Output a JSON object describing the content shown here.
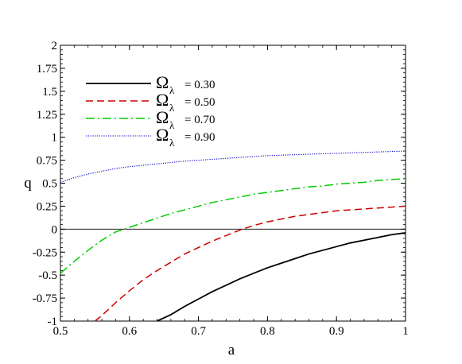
{
  "chart_data": {
    "type": "line",
    "xlabel": "a",
    "ylabel": "q",
    "xlim": [
      0.5,
      1.0
    ],
    "ylim": [
      -1.0,
      2.0
    ],
    "x_ticks": [
      "0.5",
      "0.6",
      "0.7",
      "0.8",
      "0.9",
      "1"
    ],
    "y_ticks": [
      "-1",
      "-0.75",
      "-0.5",
      "-0.25",
      "0",
      "0.25",
      "0.5",
      "0.75",
      "1",
      "1.25",
      "1.5",
      "1.75",
      "2"
    ],
    "x_tick_values": [
      0.5,
      0.6,
      0.7,
      0.8,
      0.9,
      1.0
    ],
    "y_tick_values": [
      -1.0,
      -0.75,
      -0.5,
      -0.25,
      0.0,
      0.25,
      0.5,
      0.75,
      1.0,
      1.25,
      1.5,
      1.75,
      2.0
    ],
    "reference_line_y": 0,
    "legend_position": "top-left",
    "grid": false,
    "series": [
      {
        "symbol": "Ω",
        "subscript": "λ",
        "value_label": "= 0.30",
        "color": "#000000",
        "dash": "solid",
        "x": [
          0.64,
          0.66,
          0.68,
          0.7,
          0.72,
          0.74,
          0.76,
          0.78,
          0.8,
          0.82,
          0.84,
          0.86,
          0.88,
          0.9,
          0.92,
          0.94,
          0.96,
          0.98,
          1.0
        ],
        "y": [
          -1.0,
          -0.93,
          -0.84,
          -0.76,
          -0.68,
          -0.61,
          -0.54,
          -0.48,
          -0.42,
          -0.37,
          -0.32,
          -0.27,
          -0.23,
          -0.19,
          -0.15,
          -0.12,
          -0.09,
          -0.06,
          -0.04
        ]
      },
      {
        "symbol": "Ω",
        "subscript": "λ",
        "value_label": "= 0.50",
        "color": "#cc0000",
        "dash": "dashed",
        "x": [
          0.55,
          0.56,
          0.58,
          0.6,
          0.62,
          0.64,
          0.66,
          0.68,
          0.7,
          0.72,
          0.74,
          0.76,
          0.78,
          0.8,
          0.82,
          0.84,
          0.86,
          0.88,
          0.9,
          0.92,
          0.94,
          0.96,
          0.98,
          1.0
        ],
        "y": [
          -1.0,
          -0.94,
          -0.8,
          -0.67,
          -0.55,
          -0.45,
          -0.36,
          -0.27,
          -0.2,
          -0.13,
          -0.07,
          -0.01,
          0.04,
          0.08,
          0.11,
          0.14,
          0.16,
          0.18,
          0.2,
          0.21,
          0.22,
          0.23,
          0.24,
          0.25
        ]
      },
      {
        "symbol": "Ω",
        "subscript": "λ",
        "value_label": "= 0.70",
        "color": "#00cc00",
        "dash": "dashdot",
        "x": [
          0.5,
          0.52,
          0.54,
          0.56,
          0.58,
          0.6,
          0.62,
          0.64,
          0.66,
          0.68,
          0.7,
          0.72,
          0.74,
          0.76,
          0.78,
          0.8,
          0.82,
          0.84,
          0.86,
          0.88,
          0.9,
          0.92,
          0.94,
          0.96,
          0.98,
          1.0
        ],
        "y": [
          -0.48,
          -0.35,
          -0.23,
          -0.12,
          -0.03,
          0.02,
          0.07,
          0.12,
          0.17,
          0.21,
          0.25,
          0.29,
          0.32,
          0.35,
          0.38,
          0.4,
          0.42,
          0.44,
          0.46,
          0.47,
          0.49,
          0.5,
          0.51,
          0.53,
          0.54,
          0.55
        ]
      },
      {
        "symbol": "Ω",
        "subscript": "λ",
        "value_label": "= 0.90",
        "color": "#0000cc",
        "dash": "dotted",
        "x": [
          0.5,
          0.52,
          0.54,
          0.56,
          0.58,
          0.6,
          0.64,
          0.68,
          0.72,
          0.76,
          0.8,
          0.84,
          0.88,
          0.92,
          0.96,
          1.0
        ],
        "y": [
          0.51,
          0.56,
          0.6,
          0.63,
          0.66,
          0.68,
          0.71,
          0.74,
          0.76,
          0.78,
          0.8,
          0.81,
          0.82,
          0.83,
          0.84,
          0.85
        ]
      }
    ]
  }
}
